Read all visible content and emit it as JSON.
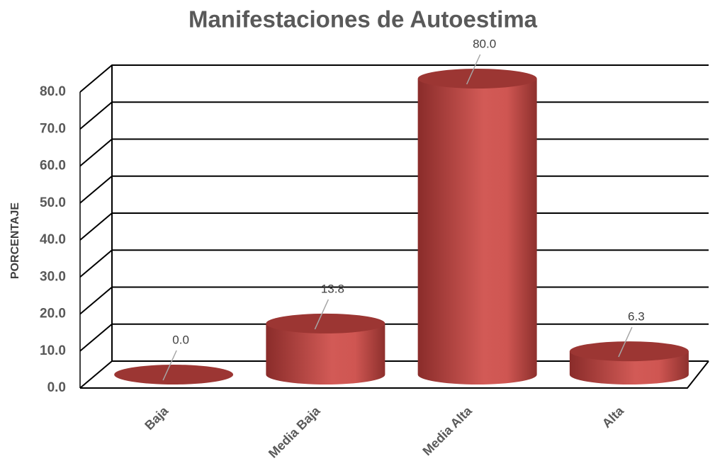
{
  "chart_data": {
    "type": "bar3d",
    "title": "Manifestaciones de Autoestima",
    "y_label": "PORCENTAJE",
    "categories": [
      "Baja",
      "Media Baja",
      "Media Alta",
      "Alta"
    ],
    "values": [
      0,
      13.8,
      80,
      6.3
    ],
    "value_labels": [
      "0.0",
      "13.8",
      "80.0",
      "6.3"
    ],
    "color": "#c0504d",
    "ylim": [
      0,
      80
    ],
    "yticks": [
      {
        "value": 0,
        "label": "0.0"
      },
      {
        "value": 10,
        "label": "10.0"
      },
      {
        "value": 20,
        "label": "20.0"
      },
      {
        "value": 30,
        "label": "30.0"
      },
      {
        "value": 40,
        "label": "40.0"
      },
      {
        "value": 50,
        "label": "50.0"
      },
      {
        "value": 60,
        "label": "60.0"
      },
      {
        "value": 70,
        "label": "70.0"
      },
      {
        "value": 80,
        "label": "80.0"
      }
    ],
    "grid": true
  }
}
